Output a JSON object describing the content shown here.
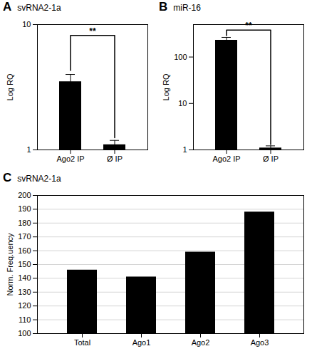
{
  "chart_data": [
    {
      "type": "bar",
      "label": "A",
      "title": "svRNA2-1a",
      "categories": [
        "Ago2 IP",
        "Ø IP"
      ],
      "values": [
        3.5,
        1.1
      ],
      "errors_up": [
        0.5,
        0.09
      ],
      "errors_dn": [
        0.4,
        0.08
      ],
      "ylabel": "Log RQ",
      "log": "y",
      "ylim": [
        1,
        10
      ],
      "yticks": [
        1,
        10
      ],
      "significance": {
        "text": "**",
        "y": 8.2,
        "left_y": 4.3,
        "right_y": 1.25
      }
    },
    {
      "type": "bar",
      "label": "B",
      "title": "miR-16",
      "categories": [
        "Ago2 IP",
        "Ø IP"
      ],
      "values": [
        230,
        1.1
      ],
      "errors_up": [
        35,
        0.12
      ],
      "errors_dn": [
        30,
        0.09
      ],
      "ylabel": "Log RQ",
      "log": "y",
      "ylim": [
        1,
        500
      ],
      "yticks": [
        1,
        10,
        100
      ],
      "significance": {
        "text": "**",
        "y": 380,
        "left_y": 290,
        "right_y": 1.3
      }
    },
    {
      "type": "bar",
      "label": "C",
      "title": "svRNA2-1a",
      "categories": [
        "Total",
        "Ago1",
        "Ago2",
        "Ago3"
      ],
      "values": [
        146,
        141,
        159,
        188
      ],
      "ylabel": "Norm. Freq.uency",
      "ylim": [
        100,
        200
      ],
      "yticks": [
        100,
        110,
        120,
        130,
        140,
        150,
        160,
        170,
        180,
        190,
        200
      ],
      "grid": true
    }
  ]
}
